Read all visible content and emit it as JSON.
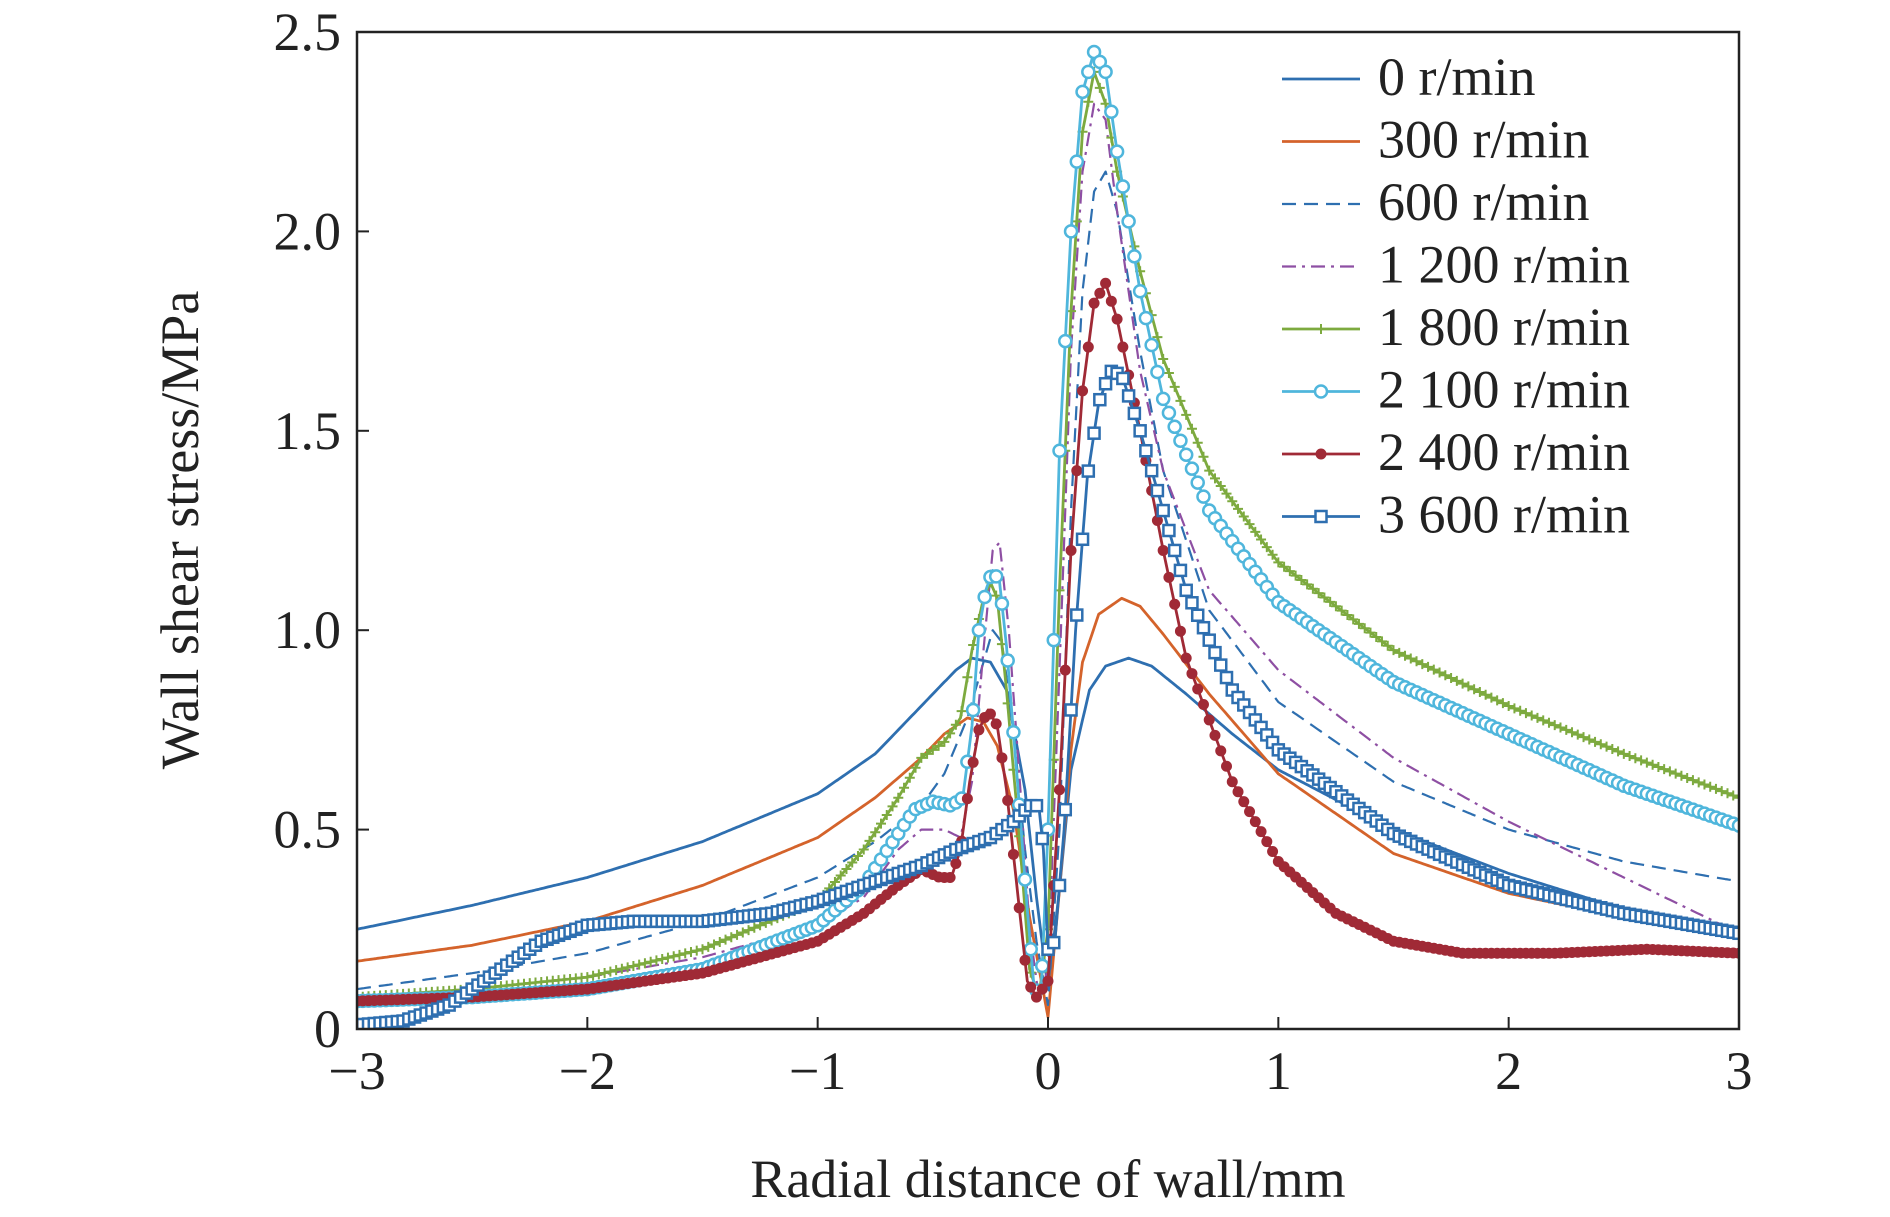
{
  "chart_data": {
    "type": "line",
    "title": "",
    "xlabel": "Radial distance of wall/mm",
    "ylabel": "Wall shear stress/MPa",
    "xlim": [
      -3,
      3
    ],
    "ylim": [
      0,
      2.5
    ],
    "x_ticks": [
      -3,
      -2,
      -1,
      0,
      1,
      2,
      3
    ],
    "x_tick_labels": [
      "−3",
      "−2",
      "−1",
      "0",
      "1",
      "2",
      "3"
    ],
    "y_ticks": [
      0,
      0.5,
      1.0,
      1.5,
      2.0,
      2.5
    ],
    "y_tick_labels": [
      "0",
      "0.5",
      "1.0",
      "1.5",
      "2.0",
      "2.5"
    ],
    "grid": false,
    "legend_position": "top-right",
    "series": [
      {
        "name": "0 r/min",
        "color": "#2e6fb0",
        "style": "solid",
        "marker": "none",
        "points": [
          [
            -3,
            0.25
          ],
          [
            -2.5,
            0.31
          ],
          [
            -2,
            0.38
          ],
          [
            -1.5,
            0.47
          ],
          [
            -1,
            0.59
          ],
          [
            -0.75,
            0.69
          ],
          [
            -0.55,
            0.81
          ],
          [
            -0.4,
            0.9
          ],
          [
            -0.33,
            0.93
          ],
          [
            -0.25,
            0.92
          ],
          [
            -0.18,
            0.85
          ],
          [
            -0.1,
            0.6
          ],
          [
            -0.05,
            0.33
          ],
          [
            0,
            0.1
          ],
          [
            0.05,
            0.35
          ],
          [
            0.1,
            0.65
          ],
          [
            0.18,
            0.85
          ],
          [
            0.25,
            0.91
          ],
          [
            0.35,
            0.93
          ],
          [
            0.45,
            0.91
          ],
          [
            0.6,
            0.84
          ],
          [
            0.8,
            0.74
          ],
          [
            1,
            0.65
          ],
          [
            1.5,
            0.5
          ],
          [
            2,
            0.39
          ],
          [
            2.5,
            0.3
          ],
          [
            3,
            0.24
          ]
        ]
      },
      {
        "name": "300 r/min",
        "color": "#d4632b",
        "style": "solid",
        "marker": "none",
        "points": [
          [
            -3,
            0.17
          ],
          [
            -2.5,
            0.21
          ],
          [
            -2,
            0.27
          ],
          [
            -1.5,
            0.36
          ],
          [
            -1,
            0.48
          ],
          [
            -0.75,
            0.58
          ],
          [
            -0.55,
            0.68
          ],
          [
            -0.45,
            0.74
          ],
          [
            -0.35,
            0.78
          ],
          [
            -0.28,
            0.77
          ],
          [
            -0.22,
            0.71
          ],
          [
            -0.15,
            0.55
          ],
          [
            -0.08,
            0.28
          ],
          [
            0,
            0.03
          ],
          [
            0.05,
            0.35
          ],
          [
            0.1,
            0.7
          ],
          [
            0.15,
            0.92
          ],
          [
            0.22,
            1.04
          ],
          [
            0.32,
            1.08
          ],
          [
            0.4,
            1.06
          ],
          [
            0.5,
            0.99
          ],
          [
            0.7,
            0.84
          ],
          [
            1,
            0.64
          ],
          [
            1.5,
            0.44
          ],
          [
            2,
            0.34
          ],
          [
            2.5,
            0.28
          ],
          [
            3,
            0.23
          ]
        ]
      },
      {
        "name": "600 r/min",
        "color": "#2e6fb0",
        "style": "dashed",
        "marker": "none",
        "points": [
          [
            -3,
            0.1
          ],
          [
            -2.5,
            0.14
          ],
          [
            -2,
            0.19
          ],
          [
            -1.5,
            0.27
          ],
          [
            -1,
            0.38
          ],
          [
            -0.75,
            0.47
          ],
          [
            -0.55,
            0.56
          ],
          [
            -0.45,
            0.64
          ],
          [
            -0.35,
            0.78
          ],
          [
            -0.28,
            0.92
          ],
          [
            -0.24,
            1.0
          ],
          [
            -0.2,
            0.97
          ],
          [
            -0.15,
            0.75
          ],
          [
            -0.1,
            0.45
          ],
          [
            -0.05,
            0.22
          ],
          [
            0,
            0.06
          ],
          [
            0.05,
            0.5
          ],
          [
            0.1,
            1.3
          ],
          [
            0.15,
            1.85
          ],
          [
            0.2,
            2.1
          ],
          [
            0.25,
            2.15
          ],
          [
            0.3,
            2.05
          ],
          [
            0.4,
            1.7
          ],
          [
            0.5,
            1.4
          ],
          [
            0.7,
            1.05
          ],
          [
            1,
            0.82
          ],
          [
            1.5,
            0.62
          ],
          [
            2,
            0.5
          ],
          [
            2.5,
            0.42
          ],
          [
            3,
            0.37
          ]
        ]
      },
      {
        "name": "1 200 r/min",
        "color": "#8e4fa3",
        "style": "dashdot",
        "marker": "none",
        "points": [
          [
            -3,
            0.08
          ],
          [
            -2.5,
            0.1
          ],
          [
            -2,
            0.13
          ],
          [
            -1.5,
            0.18
          ],
          [
            -1,
            0.26
          ],
          [
            -0.8,
            0.33
          ],
          [
            -0.65,
            0.45
          ],
          [
            -0.55,
            0.5
          ],
          [
            -0.45,
            0.5
          ],
          [
            -0.38,
            0.48
          ],
          [
            -0.33,
            0.62
          ],
          [
            -0.28,
            0.95
          ],
          [
            -0.24,
            1.2
          ],
          [
            -0.21,
            1.22
          ],
          [
            -0.17,
            1.0
          ],
          [
            -0.12,
            0.6
          ],
          [
            -0.08,
            0.25
          ],
          [
            -0.04,
            0.08
          ],
          [
            0,
            0.15
          ],
          [
            0.05,
            0.9
          ],
          [
            0.1,
            1.7
          ],
          [
            0.15,
            2.15
          ],
          [
            0.2,
            2.32
          ],
          [
            0.25,
            2.28
          ],
          [
            0.3,
            2.05
          ],
          [
            0.4,
            1.65
          ],
          [
            0.5,
            1.4
          ],
          [
            0.7,
            1.1
          ],
          [
            1,
            0.9
          ],
          [
            1.5,
            0.68
          ],
          [
            2,
            0.52
          ],
          [
            2.5,
            0.38
          ],
          [
            3,
            0.24
          ]
        ]
      },
      {
        "name": "1 800 r/min",
        "color": "#7daa3f",
        "style": "solid",
        "marker": "plus",
        "points": [
          [
            -3,
            0.08
          ],
          [
            -2.5,
            0.1
          ],
          [
            -2,
            0.13
          ],
          [
            -1.5,
            0.2
          ],
          [
            -1,
            0.32
          ],
          [
            -0.8,
            0.45
          ],
          [
            -0.65,
            0.58
          ],
          [
            -0.55,
            0.68
          ],
          [
            -0.45,
            0.72
          ],
          [
            -0.38,
            0.78
          ],
          [
            -0.33,
            0.95
          ],
          [
            -0.28,
            1.08
          ],
          [
            -0.25,
            1.12
          ],
          [
            -0.22,
            1.08
          ],
          [
            -0.18,
            0.85
          ],
          [
            -0.12,
            0.45
          ],
          [
            -0.08,
            0.15
          ],
          [
            -0.04,
            0.08
          ],
          [
            0,
            0.25
          ],
          [
            0.05,
            1.1
          ],
          [
            0.1,
            1.8
          ],
          [
            0.15,
            2.25
          ],
          [
            0.2,
            2.4
          ],
          [
            0.25,
            2.32
          ],
          [
            0.3,
            2.15
          ],
          [
            0.4,
            1.9
          ],
          [
            0.5,
            1.68
          ],
          [
            0.7,
            1.4
          ],
          [
            1,
            1.17
          ],
          [
            1.5,
            0.95
          ],
          [
            2,
            0.81
          ],
          [
            2.5,
            0.69
          ],
          [
            3,
            0.58
          ]
        ]
      },
      {
        "name": "2 100 r/min",
        "color": "#4fb6dc",
        "style": "solid",
        "marker": "circle",
        "points": [
          [
            -3,
            0.07
          ],
          [
            -2.5,
            0.08
          ],
          [
            -2,
            0.1
          ],
          [
            -1.5,
            0.15
          ],
          [
            -1,
            0.26
          ],
          [
            -0.8,
            0.36
          ],
          [
            -0.65,
            0.49
          ],
          [
            -0.58,
            0.55
          ],
          [
            -0.5,
            0.57
          ],
          [
            -0.42,
            0.56
          ],
          [
            -0.37,
            0.58
          ],
          [
            -0.33,
            0.76
          ],
          [
            -0.3,
            1.0
          ],
          [
            -0.27,
            1.1
          ],
          [
            -0.24,
            1.15
          ],
          [
            -0.21,
            1.12
          ],
          [
            -0.18,
            0.96
          ],
          [
            -0.13,
            0.6
          ],
          [
            -0.09,
            0.3
          ],
          [
            -0.06,
            0.1
          ],
          [
            -0.03,
            0.09
          ],
          [
            0,
            0.5
          ],
          [
            0.05,
            1.45
          ],
          [
            0.1,
            2.0
          ],
          [
            0.15,
            2.35
          ],
          [
            0.2,
            2.45
          ],
          [
            0.25,
            2.4
          ],
          [
            0.3,
            2.2
          ],
          [
            0.4,
            1.85
          ],
          [
            0.5,
            1.58
          ],
          [
            0.7,
            1.3
          ],
          [
            1,
            1.07
          ],
          [
            1.5,
            0.87
          ],
          [
            2,
            0.74
          ],
          [
            2.5,
            0.61
          ],
          [
            3,
            0.51
          ]
        ]
      },
      {
        "name": "2 400 r/min",
        "color": "#a02a36",
        "style": "solid",
        "marker": "dot",
        "points": [
          [
            -3,
            0.07
          ],
          [
            -2.5,
            0.08
          ],
          [
            -2,
            0.1
          ],
          [
            -1.5,
            0.14
          ],
          [
            -1,
            0.22
          ],
          [
            -0.8,
            0.29
          ],
          [
            -0.65,
            0.36
          ],
          [
            -0.55,
            0.4
          ],
          [
            -0.47,
            0.38
          ],
          [
            -0.42,
            0.38
          ],
          [
            -0.38,
            0.45
          ],
          [
            -0.34,
            0.62
          ],
          [
            -0.3,
            0.75
          ],
          [
            -0.26,
            0.8
          ],
          [
            -0.22,
            0.76
          ],
          [
            -0.18,
            0.6
          ],
          [
            -0.13,
            0.33
          ],
          [
            -0.09,
            0.12
          ],
          [
            -0.05,
            0.08
          ],
          [
            0,
            0.12
          ],
          [
            0.05,
            0.6
          ],
          [
            0.1,
            1.2
          ],
          [
            0.15,
            1.6
          ],
          [
            0.2,
            1.82
          ],
          [
            0.25,
            1.87
          ],
          [
            0.3,
            1.78
          ],
          [
            0.4,
            1.5
          ],
          [
            0.5,
            1.2
          ],
          [
            0.6,
            0.93
          ],
          [
            0.8,
            0.62
          ],
          [
            1,
            0.42
          ],
          [
            1.25,
            0.29
          ],
          [
            1.5,
            0.22
          ],
          [
            1.8,
            0.19
          ],
          [
            2.2,
            0.19
          ],
          [
            2.6,
            0.2
          ],
          [
            3,
            0.19
          ]
        ]
      },
      {
        "name": "3 600 r/min",
        "color": "#2e6fb0",
        "style": "solid",
        "marker": "square",
        "points": [
          [
            -3,
            0.01
          ],
          [
            -2.8,
            0.02
          ],
          [
            -2.6,
            0.06
          ],
          [
            -2.4,
            0.14
          ],
          [
            -2.2,
            0.22
          ],
          [
            -2,
            0.26
          ],
          [
            -1.8,
            0.27
          ],
          [
            -1.5,
            0.27
          ],
          [
            -1.2,
            0.29
          ],
          [
            -1,
            0.32
          ],
          [
            -0.75,
            0.37
          ],
          [
            -0.55,
            0.41
          ],
          [
            -0.4,
            0.45
          ],
          [
            -0.25,
            0.48
          ],
          [
            -0.15,
            0.52
          ],
          [
            -0.08,
            0.56
          ],
          [
            -0.04,
            0.56
          ],
          [
            -0.02,
            0.45
          ],
          [
            0,
            0.2
          ],
          [
            0.03,
            0.22
          ],
          [
            0.07,
            0.5
          ],
          [
            0.12,
            1.0
          ],
          [
            0.17,
            1.38
          ],
          [
            0.22,
            1.57
          ],
          [
            0.27,
            1.65
          ],
          [
            0.32,
            1.64
          ],
          [
            0.4,
            1.5
          ],
          [
            0.5,
            1.3
          ],
          [
            0.6,
            1.1
          ],
          [
            0.8,
            0.85
          ],
          [
            1,
            0.7
          ],
          [
            1.5,
            0.49
          ],
          [
            2,
            0.36
          ],
          [
            2.5,
            0.29
          ],
          [
            3,
            0.24
          ]
        ]
      }
    ]
  }
}
